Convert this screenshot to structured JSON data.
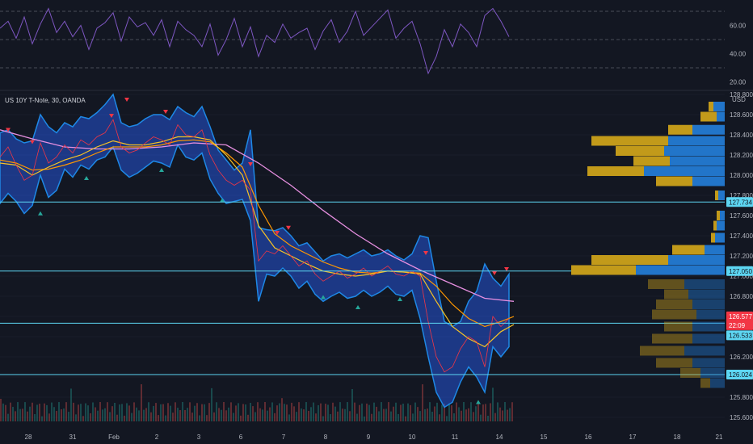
{
  "header": {
    "symbol_legend": "US 10Y T-Note, 30, OANDA",
    "currency": "USD"
  },
  "colors": {
    "background": "#131722",
    "grid": "#1f2433",
    "band_fill": "#2962ff",
    "band_edge": "#1e88e5",
    "price_line": "#f23645",
    "ema_fast": "#f7c325",
    "ema_mid": "#ff9800",
    "ema_slow": "#e68fe0",
    "rsi_line": "#7e57c2",
    "hline": "#5dd6f2",
    "vol_gold": "#c29a1a",
    "vol_blue": "#2275c9",
    "up_marker": "#26a69a",
    "down_marker": "#f23645"
  },
  "chart_data": [
    {
      "type": "line",
      "panel": "rsi",
      "y_ticks": [
        "60.00",
        "40.00",
        "20.00"
      ],
      "ylim": [
        14,
        78
      ],
      "levels": [
        70,
        50,
        30
      ],
      "series": [
        {
          "x": [
            0,
            10,
            20,
            30,
            40,
            50,
            60,
            70,
            80,
            90,
            100,
            110,
            120,
            130,
            140,
            150,
            160,
            170,
            180,
            190,
            200,
            210,
            220,
            230,
            240,
            250,
            260,
            270,
            280,
            290,
            300,
            310,
            320,
            330,
            340,
            350,
            360,
            370,
            380,
            390,
            400,
            410,
            420,
            430,
            440,
            450,
            460,
            470,
            480,
            490,
            500,
            510,
            520,
            530,
            540,
            550,
            560,
            570,
            580,
            590,
            600,
            610,
            620,
            630
          ],
          "values": [
            58,
            63,
            51,
            66,
            47,
            61,
            72,
            55,
            63,
            52,
            60,
            43,
            58,
            62,
            69,
            49,
            66,
            59,
            62,
            53,
            64,
            45,
            63,
            57,
            53,
            45,
            61,
            39,
            50,
            65,
            45,
            59,
            38,
            53,
            48,
            61,
            51,
            55,
            58,
            43,
            56,
            64,
            48,
            56,
            70,
            53,
            59,
            65,
            71,
            51,
            58,
            63,
            47,
            26,
            38,
            57,
            45,
            61,
            55,
            45,
            67,
            72,
            63,
            52
          ]
        }
      ]
    },
    {
      "type": "line",
      "panel": "price",
      "y_ticks": [
        "128.800",
        "128.600",
        "128.400",
        "128.200",
        "128.000",
        "127.800",
        "127.600",
        "127.400",
        "127.200",
        "127.000",
        "126.800",
        "126.600",
        "126.400",
        "126.200",
        "126.000",
        "125.800",
        "125.600"
      ],
      "ylim": [
        125.56,
        128.84
      ],
      "x_ticks": [
        "28",
        "31",
        "Feb",
        "2",
        "3",
        "6",
        "7",
        "8",
        "9",
        "10",
        "11",
        "14",
        "15",
        "16",
        "17",
        "18",
        "21"
      ],
      "price_tags": [
        "127.734",
        "127.050",
        "126.577",
        "22:09",
        "126.533",
        "126.024"
      ],
      "hlines": [
        127.734,
        127.05,
        126.533,
        126.024
      ],
      "last_price": 126.577,
      "countdown": "22:09",
      "series": [
        {
          "name": "",
          "kind": "price",
          "x": [
            0,
            10,
            20,
            30,
            40,
            50,
            60,
            70,
            80,
            90,
            100,
            110,
            120,
            130,
            140,
            150,
            160,
            170,
            180,
            190,
            200,
            210,
            220,
            230,
            240,
            250,
            260,
            270,
            280,
            290,
            300,
            310,
            320,
            330,
            340,
            350,
            360,
            370,
            380,
            390,
            400,
            410,
            420,
            430,
            440,
            450,
            460,
            470,
            480,
            490,
            500,
            510,
            520,
            530,
            540,
            550,
            560,
            570,
            580,
            590,
            600,
            610,
            620,
            630
          ],
          "values": [
            128.18,
            128.28,
            128.1,
            127.95,
            128.0,
            128.32,
            128.12,
            128.18,
            128.3,
            128.22,
            128.35,
            128.3,
            128.38,
            128.42,
            128.55,
            128.28,
            128.22,
            128.25,
            128.32,
            128.38,
            128.35,
            128.3,
            128.5,
            128.4,
            128.38,
            128.45,
            128.2,
            128.05,
            127.95,
            127.9,
            127.95,
            127.85,
            127.15,
            127.25,
            127.22,
            127.3,
            127.2,
            127.1,
            127.15,
            127.02,
            126.95,
            127.0,
            127.05,
            126.98,
            127.02,
            127.08,
            127.0,
            127.05,
            127.1,
            127.02,
            127.0,
            127.05,
            127.0,
            126.55,
            126.2,
            126.05,
            126.1,
            126.28,
            126.4,
            126.35,
            126.1,
            126.6,
            126.5,
            126.58
          ]
        },
        {
          "name": "",
          "kind": "band_upper",
          "x": [
            0,
            10,
            20,
            30,
            40,
            50,
            60,
            70,
            80,
            90,
            100,
            110,
            120,
            130,
            140,
            150,
            160,
            170,
            180,
            190,
            200,
            210,
            220,
            230,
            240,
            250,
            260,
            270,
            280,
            290,
            300,
            310,
            320,
            330,
            340,
            350,
            360,
            370,
            380,
            390,
            400,
            410,
            420,
            430,
            440,
            450,
            460,
            470,
            480,
            490,
            500,
            510,
            520,
            530,
            540,
            550,
            560,
            570,
            580,
            590,
            600,
            610,
            620,
            630
          ],
          "values": [
            128.42,
            128.45,
            128.36,
            128.32,
            128.34,
            128.6,
            128.48,
            128.42,
            128.52,
            128.48,
            128.58,
            128.56,
            128.62,
            128.7,
            128.8,
            128.52,
            128.48,
            128.5,
            128.56,
            128.6,
            128.6,
            128.55,
            128.68,
            128.62,
            128.58,
            128.68,
            128.48,
            128.25,
            128.15,
            128.05,
            128.12,
            128.45,
            127.48,
            127.46,
            127.45,
            127.48,
            127.4,
            127.3,
            127.33,
            127.24,
            127.15,
            127.2,
            127.22,
            127.18,
            127.22,
            127.26,
            127.2,
            127.22,
            127.26,
            127.2,
            127.16,
            127.22,
            127.4,
            127.38,
            126.95,
            126.55,
            126.5,
            126.55,
            126.75,
            126.85,
            127.12,
            126.98,
            126.9,
            127.02
          ]
        },
        {
          "name": "",
          "kind": "band_lower",
          "x": [
            0,
            10,
            20,
            30,
            40,
            50,
            60,
            70,
            80,
            90,
            100,
            110,
            120,
            130,
            140,
            150,
            160,
            170,
            180,
            190,
            200,
            210,
            220,
            230,
            240,
            250,
            260,
            270,
            280,
            290,
            300,
            310,
            320,
            330,
            340,
            350,
            360,
            370,
            380,
            390,
            400,
            410,
            420,
            430,
            440,
            450,
            460,
            470,
            480,
            490,
            500,
            510,
            520,
            530,
            540,
            550,
            560,
            570,
            580,
            590,
            600,
            610,
            620,
            630
          ],
          "values": [
            127.72,
            127.82,
            127.74,
            127.62,
            127.7,
            128.0,
            127.78,
            127.85,
            128.06,
            127.98,
            128.1,
            128.06,
            128.15,
            128.18,
            128.28,
            128.05,
            127.98,
            128.02,
            128.08,
            128.14,
            128.12,
            128.08,
            128.3,
            128.18,
            128.15,
            128.22,
            127.96,
            127.82,
            127.72,
            127.74,
            127.76,
            127.55,
            126.75,
            127.02,
            127.0,
            127.08,
            127.0,
            126.88,
            126.95,
            126.82,
            126.75,
            126.8,
            126.84,
            126.78,
            126.8,
            126.86,
            126.8,
            126.84,
            126.9,
            126.82,
            126.8,
            126.86,
            126.58,
            126.2,
            125.85,
            125.7,
            125.75,
            125.95,
            126.1,
            126.0,
            125.85,
            126.3,
            126.2,
            126.3
          ]
        },
        {
          "name": "",
          "kind": "ema_fast",
          "x": [
            0,
            20,
            40,
            60,
            80,
            100,
            120,
            140,
            160,
            180,
            200,
            220,
            240,
            260,
            280,
            300,
            320,
            340,
            360,
            380,
            400,
            420,
            440,
            460,
            480,
            500,
            520,
            540,
            560,
            580,
            600,
            620,
            636
          ],
          "values": [
            128.12,
            128.1,
            128.0,
            128.08,
            128.15,
            128.2,
            128.28,
            128.34,
            128.3,
            128.3,
            128.33,
            128.38,
            128.38,
            128.35,
            128.2,
            128.0,
            127.5,
            127.28,
            127.2,
            127.12,
            127.05,
            127.02,
            127.0,
            127.02,
            127.05,
            127.04,
            127.02,
            126.75,
            126.5,
            126.38,
            126.3,
            126.45,
            126.52
          ]
        },
        {
          "name": "",
          "kind": "ema_mid",
          "x": [
            0,
            20,
            40,
            60,
            80,
            100,
            120,
            140,
            160,
            180,
            200,
            220,
            240,
            260,
            280,
            300,
            320,
            340,
            360,
            380,
            400,
            420,
            440,
            460,
            480,
            500,
            520,
            540,
            560,
            580,
            600,
            620,
            636
          ],
          "values": [
            128.15,
            128.12,
            128.05,
            128.06,
            128.1,
            128.15,
            128.22,
            128.28,
            128.28,
            128.28,
            128.3,
            128.34,
            128.35,
            128.33,
            128.22,
            128.08,
            127.7,
            127.42,
            127.3,
            127.22,
            127.14,
            127.08,
            127.04,
            127.03,
            127.05,
            127.04,
            127.03,
            126.9,
            126.72,
            126.58,
            126.5,
            126.55,
            126.6
          ]
        },
        {
          "name": "",
          "kind": "ema_slow",
          "x": [
            0,
            40,
            80,
            120,
            160,
            200,
            240,
            280,
            320,
            360,
            400,
            440,
            480,
            520,
            560,
            600,
            636
          ],
          "values": [
            128.45,
            128.36,
            128.28,
            128.26,
            128.26,
            128.28,
            128.32,
            128.3,
            128.12,
            127.9,
            127.65,
            127.42,
            127.22,
            127.06,
            126.92,
            126.78,
            126.75
          ]
        }
      ]
    }
  ]
}
